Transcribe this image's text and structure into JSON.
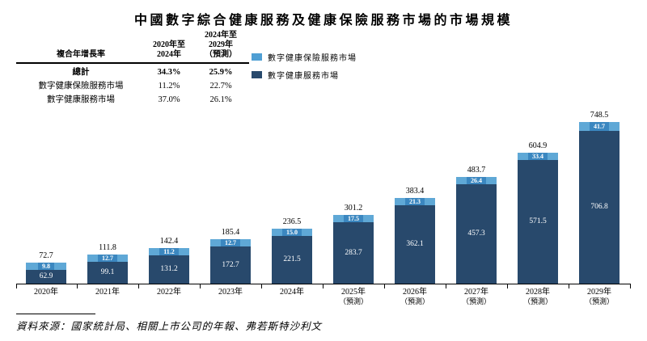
{
  "title": "中國數字綜合健康服務及健康保險服務市場的市場規模",
  "cagr_table": {
    "col1_header": "複合年增長率",
    "col2_header_lines": [
      "2020年至",
      "2024年"
    ],
    "col3_header_lines": [
      "2024年至",
      "2029年",
      "（預測）"
    ],
    "rows": [
      {
        "label": "總計",
        "cagr_2020_2024": "34.3%",
        "cagr_2024_2029": "25.9%"
      },
      {
        "label": "數字健康保險服務市場",
        "cagr_2020_2024": "11.2%",
        "cagr_2024_2029": "22.7%"
      },
      {
        "label": "數字健康服務市場",
        "cagr_2020_2024": "37.0%",
        "cagr_2024_2029": "26.1%"
      }
    ]
  },
  "legend": [
    {
      "label": "數字健康保險服務市場",
      "color": "#4f9fd4"
    },
    {
      "label": "數字健康服務市場",
      "color": "#28496c"
    }
  ],
  "chart_data": {
    "type": "bar",
    "stacked": true,
    "categories": [
      "2020年",
      "2021年",
      "2022年",
      "2023年",
      "2024年",
      "2025年",
      "2026年",
      "2027年",
      "2028年",
      "2029年"
    ],
    "category_sublabels": [
      "",
      "",
      "",
      "",
      "",
      "（預測）",
      "（預測）",
      "（預測）",
      "（預測）",
      "（預測）"
    ],
    "series": [
      {
        "name": "數字健康保險服務市場",
        "color": "#5fa8d6",
        "label_box_color": "#3b87c0",
        "position": "top",
        "values": [
          9.8,
          12.7,
          11.2,
          12.7,
          15.0,
          17.5,
          21.3,
          26.4,
          33.4,
          41.7
        ]
      },
      {
        "name": "數字健康服務市場",
        "color": "#28496c",
        "position": "bottom",
        "values": [
          62.9,
          99.1,
          131.2,
          172.7,
          221.5,
          283.7,
          362.1,
          457.3,
          571.5,
          706.8
        ]
      }
    ],
    "totals": [
      72.7,
      111.8,
      142.4,
      185.4,
      236.5,
      301.2,
      383.4,
      483.7,
      604.9,
      748.5
    ],
    "ylim": [
      0,
      790
    ],
    "grid": false,
    "legend_position": "top-right",
    "value_labels": "totals above bars, segment values inside bars"
  },
  "source": "資料來源：國家統計局、相關上市公司的年報、弗若斯特沙利文"
}
